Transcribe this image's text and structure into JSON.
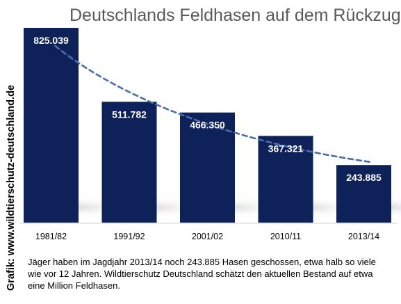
{
  "title": "Deutschlands Feldhasen auf dem Rückzug",
  "side_credit": "Grafik: www.wildtierschutz-deutschland.de",
  "caption": "Jäger haben im Jagdjahr 2013/14 noch 243.885 Hasen geschossen, etwa halb so viele wie vor 12 Jahren. Wildtierschutz Deutschland schätzt den aktuellen Bestand auf etwa eine Million Feldhasen.",
  "colors": {
    "bar": "#0e2158",
    "trend": "#4a6ea8",
    "title": "#595959"
  },
  "chart_data": {
    "type": "bar",
    "title": "Deutschlands Feldhasen auf dem Rückzug",
    "categories": [
      "1981/82",
      "1991/92",
      "2001/02",
      "2010/11",
      "2013/14"
    ],
    "values": [
      825039,
      511782,
      466350,
      367321,
      243885
    ],
    "value_labels": [
      "825.039",
      "511.782",
      "466.350",
      "367.321",
      "243.885"
    ],
    "ylim": [
      0,
      850000
    ],
    "grid": false,
    "legend": "none",
    "trendline": {
      "style": "dashed",
      "kind": "decreasing curve"
    }
  }
}
